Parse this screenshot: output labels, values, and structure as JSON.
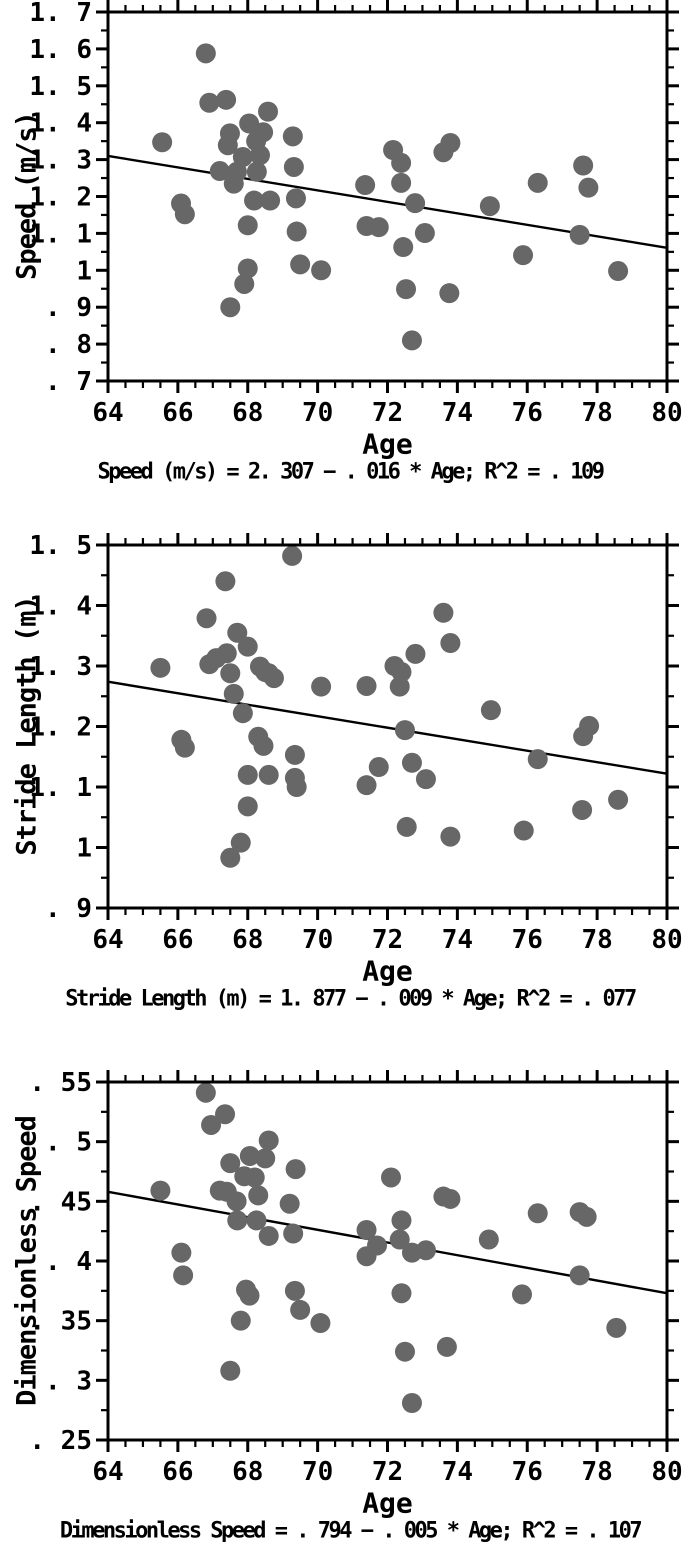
{
  "chart_data": [
    {
      "type": "scatter",
      "ylabel": "Speed (m/s)",
      "xlabel": "Age",
      "caption": "Speed (m/s) = 2. 307 − . 016 * Age; R^2 = . 109",
      "xlim": [
        64,
        80
      ],
      "ylim": [
        0.7,
        1.7
      ],
      "x_tick_values": [
        64,
        66,
        68,
        70,
        72,
        74,
        76,
        78,
        80
      ],
      "x_tick_labels": [
        "64",
        "66",
        "68",
        "70",
        "72",
        "74",
        "76",
        "78",
        "80"
      ],
      "x_minor_step": 0.5,
      "y_tick_values": [
        0.7,
        0.8,
        0.9,
        1.0,
        1.1,
        1.2,
        1.3,
        1.4,
        1.5,
        1.6,
        1.7
      ],
      "y_tick_labels": [
        ". 7",
        ". 8",
        ". 9",
        "1",
        "1. 1",
        "1. 2",
        "1. 3",
        "1. 4",
        "1. 5",
        "1. 6",
        "1. 7"
      ],
      "y_minor_step": 0.05,
      "trend_line": {
        "x1": 64,
        "y1": 1.31,
        "x2": 80,
        "y2": 1.061
      },
      "points": [
        [
          66.8,
          1.588
        ],
        [
          66.9,
          1.454
        ],
        [
          67.38,
          1.462
        ],
        [
          68.58,
          1.43
        ],
        [
          68.04,
          1.398
        ],
        [
          67.49,
          1.371
        ],
        [
          68.44,
          1.374
        ],
        [
          67.43,
          1.339
        ],
        [
          68.24,
          1.35
        ],
        [
          68.35,
          1.312
        ],
        [
          69.29,
          1.363
        ],
        [
          67.86,
          1.307
        ],
        [
          65.55,
          1.347
        ],
        [
          67.2,
          1.269
        ],
        [
          67.69,
          1.267
        ],
        [
          67.6,
          1.235
        ],
        [
          68.26,
          1.267
        ],
        [
          69.32,
          1.28
        ],
        [
          68.18,
          1.189
        ],
        [
          68.64,
          1.189
        ],
        [
          69.38,
          1.195
        ],
        [
          66.09,
          1.181
        ],
        [
          66.2,
          1.152
        ],
        [
          68.0,
          1.122
        ],
        [
          71.36,
          1.231
        ],
        [
          72.16,
          1.326
        ],
        [
          72.39,
          1.291
        ],
        [
          73.6,
          1.32
        ],
        [
          73.8,
          1.345
        ],
        [
          72.39,
          1.237
        ],
        [
          72.79,
          1.182
        ],
        [
          74.93,
          1.174
        ],
        [
          76.3,
          1.237
        ],
        [
          77.6,
          1.284
        ],
        [
          77.75,
          1.224
        ],
        [
          71.4,
          1.12
        ],
        [
          71.75,
          1.117
        ],
        [
          69.4,
          1.105
        ],
        [
          73.07,
          1.101
        ],
        [
          77.5,
          1.096
        ],
        [
          72.45,
          1.063
        ],
        [
          75.88,
          1.041
        ],
        [
          69.5,
          1.016
        ],
        [
          70.1,
          1.0
        ],
        [
          68.0,
          1.005
        ],
        [
          67.9,
          0.963
        ],
        [
          78.6,
          0.998
        ],
        [
          72.53,
          0.949
        ],
        [
          73.77,
          0.938
        ],
        [
          67.5,
          0.9
        ],
        [
          72.7,
          0.81
        ]
      ]
    },
    {
      "type": "scatter",
      "ylabel": "Stride Length (m)",
      "xlabel": "Age",
      "caption": "Stride Length (m) = 1. 877 − . 009 * Age; R^2 = . 077",
      "xlim": [
        64,
        80
      ],
      "ylim": [
        0.9,
        1.5
      ],
      "x_tick_values": [
        64,
        66,
        68,
        70,
        72,
        74,
        76,
        78,
        80
      ],
      "x_tick_labels": [
        "64",
        "66",
        "68",
        "70",
        "72",
        "74",
        "76",
        "78",
        "80"
      ],
      "x_minor_step": 0.5,
      "y_tick_values": [
        0.9,
        1.0,
        1.1,
        1.2,
        1.3,
        1.4,
        1.5
      ],
      "y_tick_labels": [
        ". 9",
        "1",
        "1. 1",
        "1. 2",
        "1. 3",
        "1. 4",
        "1. 5"
      ],
      "y_minor_step": 0.05,
      "trend_line": {
        "x1": 64,
        "y1": 1.274,
        "x2": 80,
        "y2": 1.122
      },
      "points": [
        [
          69.27,
          1.482
        ],
        [
          67.36,
          1.44
        ],
        [
          66.82,
          1.379
        ],
        [
          67.7,
          1.355
        ],
        [
          67.4,
          1.321
        ],
        [
          68.0,
          1.332
        ],
        [
          67.1,
          1.313
        ],
        [
          66.9,
          1.303
        ],
        [
          65.5,
          1.297
        ],
        [
          68.35,
          1.299
        ],
        [
          68.5,
          1.29
        ],
        [
          68.6,
          1.288
        ],
        [
          68.75,
          1.28
        ],
        [
          67.5,
          1.288
        ],
        [
          73.6,
          1.388
        ],
        [
          73.8,
          1.338
        ],
        [
          72.8,
          1.32
        ],
        [
          72.2,
          1.3
        ],
        [
          72.4,
          1.29
        ],
        [
          70.1,
          1.266
        ],
        [
          71.4,
          1.267
        ],
        [
          72.35,
          1.266
        ],
        [
          67.6,
          1.254
        ],
        [
          67.86,
          1.222
        ],
        [
          74.96,
          1.227
        ],
        [
          72.5,
          1.194
        ],
        [
          77.77,
          1.201
        ],
        [
          77.6,
          1.184
        ],
        [
          66.1,
          1.178
        ],
        [
          66.2,
          1.165
        ],
        [
          68.3,
          1.183
        ],
        [
          68.45,
          1.168
        ],
        [
          69.35,
          1.153
        ],
        [
          76.3,
          1.146
        ],
        [
          72.7,
          1.14
        ],
        [
          71.75,
          1.133
        ],
        [
          73.1,
          1.113
        ],
        [
          68.6,
          1.12
        ],
        [
          68.0,
          1.12
        ],
        [
          69.35,
          1.115
        ],
        [
          69.4,
          1.1
        ],
        [
          71.4,
          1.103
        ],
        [
          68.0,
          1.068
        ],
        [
          77.57,
          1.062
        ],
        [
          78.6,
          1.079
        ],
        [
          72.55,
          1.034
        ],
        [
          75.9,
          1.028
        ],
        [
          73.8,
          1.018
        ],
        [
          67.8,
          1.008
        ],
        [
          67.5,
          0.983
        ]
      ]
    },
    {
      "type": "scatter",
      "ylabel": "Dimensionless Speed",
      "xlabel": "Age",
      "caption": "Dimensionless Speed = . 794 − . 005 * Age; R^2 = . 107",
      "xlim": [
        64,
        80
      ],
      "ylim": [
        0.25,
        0.55
      ],
      "x_tick_values": [
        64,
        66,
        68,
        70,
        72,
        74,
        76,
        78,
        80
      ],
      "x_tick_labels": [
        "64",
        "66",
        "68",
        "70",
        "72",
        "74",
        "76",
        "78",
        "80"
      ],
      "x_minor_step": 0.5,
      "y_tick_values": [
        0.25,
        0.3,
        0.35,
        0.4,
        0.45,
        0.5,
        0.55
      ],
      "y_tick_labels": [
        ". 25",
        ". 3",
        ". 35",
        ". 4",
        ". 45",
        ". 5",
        ". 55"
      ],
      "y_minor_step": 0.025,
      "trend_line": {
        "x1": 64,
        "y1": 0.458,
        "x2": 80,
        "y2": 0.373
      },
      "points": [
        [
          66.8,
          0.541
        ],
        [
          67.35,
          0.523
        ],
        [
          66.95,
          0.514
        ],
        [
          68.6,
          0.501
        ],
        [
          68.06,
          0.488
        ],
        [
          68.5,
          0.486
        ],
        [
          67.5,
          0.482
        ],
        [
          69.37,
          0.477
        ],
        [
          67.9,
          0.471
        ],
        [
          68.2,
          0.47
        ],
        [
          72.1,
          0.47
        ],
        [
          65.5,
          0.459
        ],
        [
          67.2,
          0.459
        ],
        [
          67.4,
          0.458
        ],
        [
          73.6,
          0.454
        ],
        [
          73.8,
          0.452
        ],
        [
          68.3,
          0.455
        ],
        [
          67.68,
          0.45
        ],
        [
          69.2,
          0.448
        ],
        [
          76.3,
          0.44
        ],
        [
          77.5,
          0.441
        ],
        [
          77.7,
          0.437
        ],
        [
          67.7,
          0.434
        ],
        [
          68.25,
          0.434
        ],
        [
          72.4,
          0.434
        ],
        [
          71.4,
          0.426
        ],
        [
          69.3,
          0.423
        ],
        [
          68.6,
          0.421
        ],
        [
          74.9,
          0.418
        ],
        [
          72.35,
          0.418
        ],
        [
          71.7,
          0.413
        ],
        [
          72.7,
          0.407
        ],
        [
          73.1,
          0.409
        ],
        [
          71.4,
          0.404
        ],
        [
          66.1,
          0.407
        ],
        [
          66.15,
          0.388
        ],
        [
          77.5,
          0.388
        ],
        [
          67.95,
          0.376
        ],
        [
          68.05,
          0.371
        ],
        [
          69.35,
          0.375
        ],
        [
          72.4,
          0.373
        ],
        [
          75.85,
          0.372
        ],
        [
          69.5,
          0.359
        ],
        [
          67.8,
          0.35
        ],
        [
          70.08,
          0.348
        ],
        [
          78.55,
          0.344
        ],
        [
          72.5,
          0.324
        ],
        [
          73.7,
          0.328
        ],
        [
          67.5,
          0.308
        ],
        [
          72.7,
          0.281
        ]
      ]
    }
  ],
  "style": {
    "dot_color": "#676767",
    "line_color": "#000000",
    "axis_color": "#000000",
    "background": "#ffffff",
    "dot_radius": 10
  }
}
